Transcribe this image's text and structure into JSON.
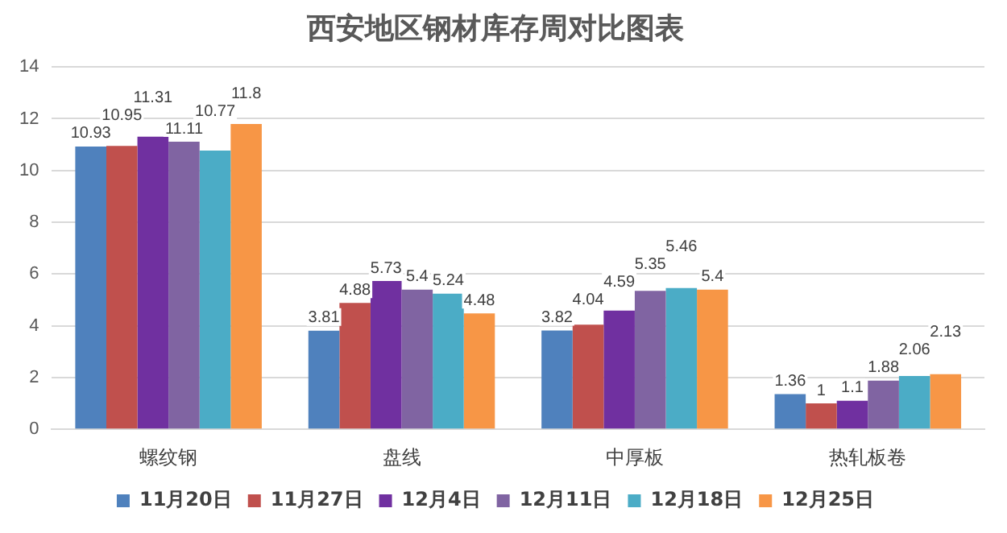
{
  "chart_data": {
    "type": "bar",
    "title": "西安地区钢材库存周对比图表",
    "categories": [
      "螺纹钢",
      "盘线",
      "中厚板",
      "热轧板卷"
    ],
    "series": [
      {
        "name": "11月20日",
        "color": "#4f81bd",
        "values": [
          10.93,
          3.81,
          3.82,
          1.36
        ]
      },
      {
        "name": "11月27日",
        "color": "#c0504d",
        "values": [
          10.95,
          4.88,
          4.04,
          1
        ]
      },
      {
        "name": "12月4日",
        "color": "#7030a0",
        "values": [
          11.31,
          5.73,
          4.59,
          1.1
        ]
      },
      {
        "name": "12月11日",
        "color": "#8064a2",
        "values": [
          11.11,
          5.4,
          5.35,
          1.88
        ]
      },
      {
        "name": "12月18日",
        "color": "#4bacc6",
        "values": [
          10.77,
          5.24,
          5.46,
          2.06
        ]
      },
      {
        "name": "12月25日",
        "color": "#f79646",
        "values": [
          11.8,
          4.48,
          5.4,
          2.13
        ]
      }
    ],
    "ylim": [
      0,
      14
    ],
    "yticks": [
      0,
      2,
      4,
      6,
      8,
      10,
      12,
      14
    ],
    "grid": "y",
    "legend": "bottom",
    "data_labels": true
  }
}
